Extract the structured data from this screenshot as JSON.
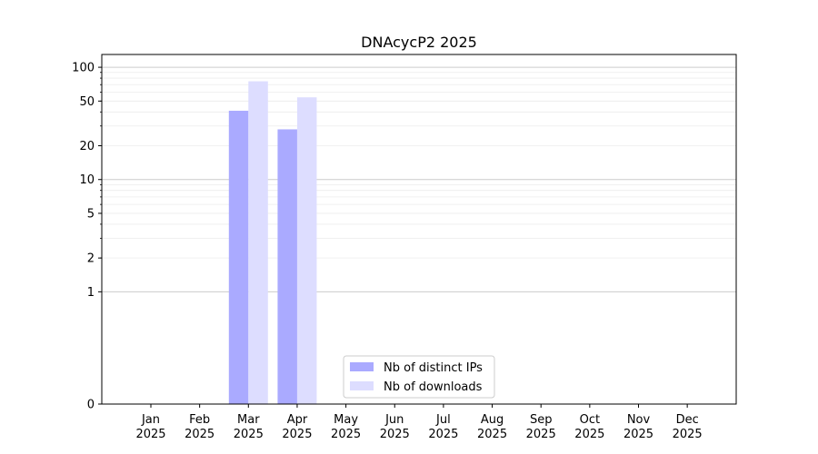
{
  "chart_data": {
    "type": "bar",
    "title": "DNAcycP2 2025",
    "xlabel": "",
    "ylabel": "",
    "y_scale": "symlog",
    "ylim": [
      0,
      130
    ],
    "y_ticks": [
      0,
      1,
      2,
      5,
      10,
      20,
      50,
      100
    ],
    "y_tick_labels": [
      "0",
      "1",
      "2",
      "5",
      "10",
      "20",
      "50",
      "100"
    ],
    "categories": [
      [
        "Jan",
        "2025"
      ],
      [
        "Feb",
        "2025"
      ],
      [
        "Mar",
        "2025"
      ],
      [
        "Apr",
        "2025"
      ],
      [
        "May",
        "2025"
      ],
      [
        "Jun",
        "2025"
      ],
      [
        "Jul",
        "2025"
      ],
      [
        "Aug",
        "2025"
      ],
      [
        "Sep",
        "2025"
      ],
      [
        "Oct",
        "2025"
      ],
      [
        "Nov",
        "2025"
      ],
      [
        "Dec",
        "2025"
      ]
    ],
    "series": [
      {
        "name": "Nb of distinct IPs",
        "color": "#aaaaff",
        "values": [
          0,
          0,
          41,
          28,
          0,
          0,
          0,
          0,
          0,
          0,
          0,
          0
        ]
      },
      {
        "name": "Nb of downloads",
        "color": "#ddddff",
        "values": [
          0,
          0,
          75,
          54,
          0,
          0,
          0,
          0,
          0,
          0,
          0,
          0
        ]
      }
    ],
    "grid": true,
    "legend_position": "bottom-center"
  }
}
